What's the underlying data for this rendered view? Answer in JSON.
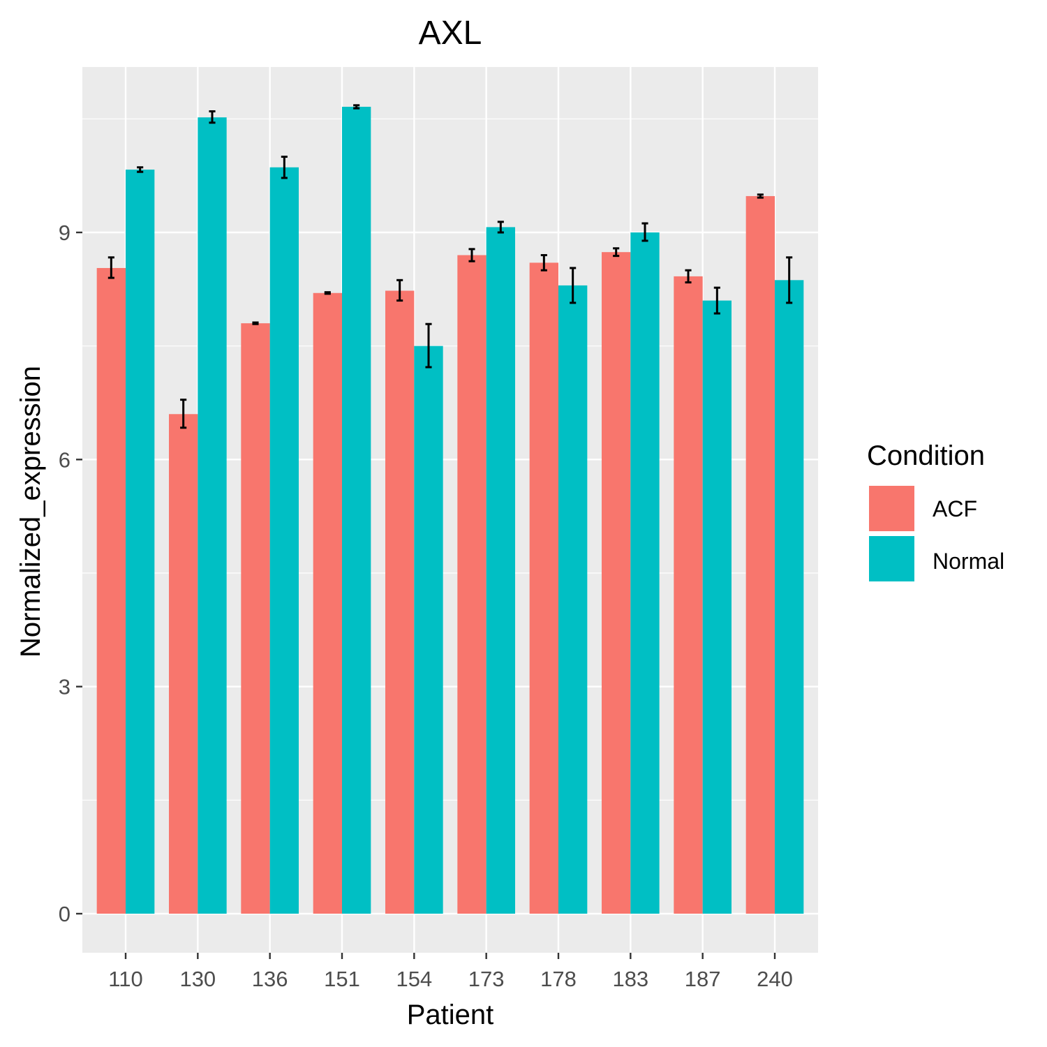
{
  "chart_data": {
    "type": "bar",
    "title": "AXL",
    "xlabel": "Patient",
    "ylabel": "Normalized_expression",
    "categories": [
      "110",
      "130",
      "136",
      "151",
      "154",
      "173",
      "178",
      "183",
      "187",
      "240"
    ],
    "series": [
      {
        "name": "ACF",
        "color": "#F8766D",
        "values": [
          8.53,
          6.6,
          7.8,
          8.2,
          8.23,
          8.7,
          8.6,
          8.74,
          8.42,
          9.48
        ],
        "error_low": [
          8.4,
          6.42,
          7.79,
          8.19,
          8.1,
          8.62,
          8.5,
          8.69,
          8.34,
          9.46
        ],
        "error_high": [
          8.67,
          6.79,
          7.81,
          8.21,
          8.37,
          8.78,
          8.7,
          8.79,
          8.5,
          9.5
        ]
      },
      {
        "name": "Normal",
        "color": "#00BFC4",
        "values": [
          9.83,
          10.52,
          9.86,
          10.66,
          7.5,
          9.07,
          8.3,
          9.0,
          8.1,
          8.37
        ],
        "error_low": [
          9.8,
          10.45,
          9.72,
          10.64,
          7.22,
          9.0,
          8.07,
          8.89,
          7.93,
          8.07
        ],
        "error_high": [
          9.86,
          10.6,
          10.0,
          10.68,
          7.79,
          9.14,
          8.53,
          9.12,
          8.27,
          8.67
        ]
      }
    ],
    "y_ticks": [
      "0",
      "3",
      "6",
      "9"
    ],
    "ylim": [
      -0.5,
      11.35
    ],
    "grid": true,
    "legend": {
      "title": "Condition",
      "position": "right"
    },
    "panel_background": "#EBEBEB"
  }
}
